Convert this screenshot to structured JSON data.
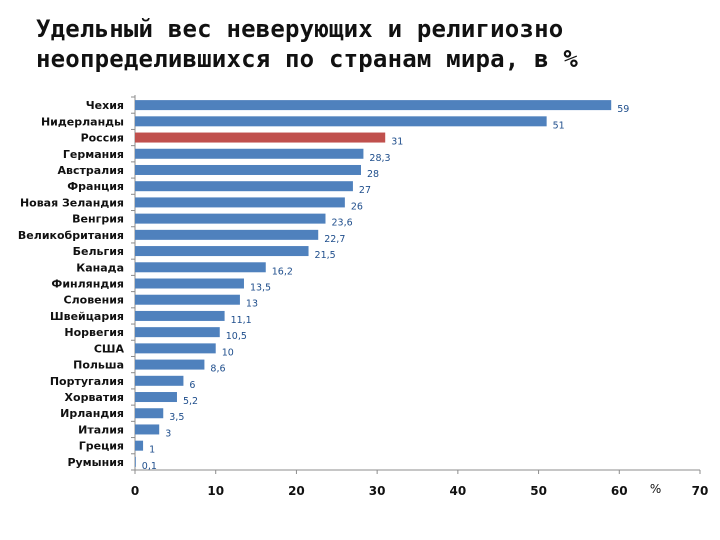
{
  "chart_data": {
    "type": "bar",
    "orientation": "horizontal",
    "title_line1": "Удельный вес неверующих и религиозно",
    "title_line2": "неопределившихся по странам мира, в %",
    "categories": [
      "Чехия",
      "Нидерланды",
      "Россия",
      "Германия",
      "Австралия",
      "Франция",
      "Новая Зеландия",
      "Венгрия",
      "Великобритания",
      "Бельгия",
      "Канада",
      "Финляндия",
      "Словения",
      "Швейцария",
      "Норвегия",
      "США",
      "Польша",
      "Португалия",
      "Хорватия",
      "Ирландия",
      "Италия",
      "Греция",
      "Румыния"
    ],
    "values": [
      59,
      51,
      31,
      28.3,
      28,
      27,
      26,
      23.6,
      22.7,
      21.5,
      16.2,
      13.5,
      13,
      11.1,
      10.5,
      10,
      8.6,
      6,
      5.2,
      3.5,
      3,
      1,
      0.1
    ],
    "value_labels": [
      "59",
      "51",
      "31",
      "28,3",
      "28",
      "27",
      "26",
      "23,6",
      "22,7",
      "21,5",
      "16,2",
      "13,5",
      "13",
      "11,1",
      "10,5",
      "10",
      "8,6",
      "6",
      "5,2",
      "3,5",
      "3",
      "1",
      "0,1"
    ],
    "highlight": "Россия",
    "xlim": [
      0,
      70
    ],
    "x_ticks": [
      0,
      10,
      20,
      30,
      40,
      50,
      60,
      70
    ],
    "x_unit_label": "%",
    "grid": false,
    "colors": {
      "bar": "#4f81bd",
      "highlight": "#c0504d",
      "axis": "#8c8c8c",
      "value_text": "#1f4e8c"
    }
  }
}
